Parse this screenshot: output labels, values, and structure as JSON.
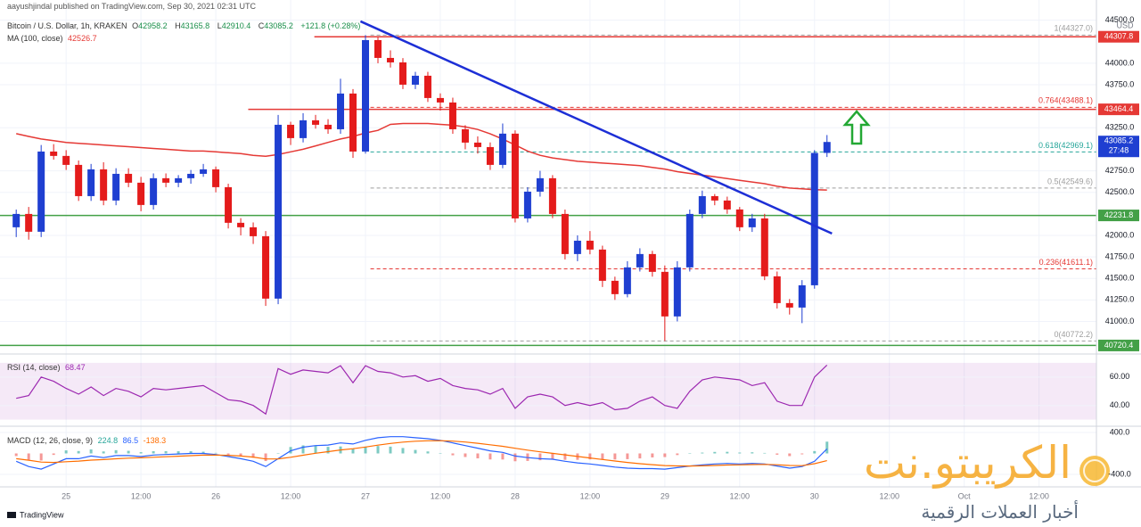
{
  "chart_data": {
    "type": "candlestick",
    "attribution": "aayushjindal published on TradingView.com, Sep 30, 2021 02:31 UTC",
    "title": "Bitcoin / U.S. Dollar, 1h, KRAKEN",
    "ohlc_prefixes": [
      "O",
      "H",
      "L",
      "C"
    ],
    "change": "+121.8 (+0.28%)",
    "countdown": "27:48",
    "axis_unit": "USD",
    "footer": "TradingView",
    "up_color": "#1f3fd1",
    "down_color": "#e41b1b",
    "open": [
      42094,
      42249,
      42042,
      42974,
      42923,
      42819,
      42456,
      42767,
      42405,
      42715,
      42612,
      42353,
      42664,
      42612,
      42664,
      42715,
      42767,
      42560,
      42146,
      42094,
      41990,
      41265,
      43285,
      43130,
      43337,
      43285,
      43233,
      43648,
      42974,
      44269,
      44062,
      44010,
      43751,
      43855,
      43596,
      43544,
      43233,
      43078,
      43026,
      42819,
      43182,
      42197,
      42508,
      42664,
      42249,
      41783,
      41938,
      41835,
      41472,
      41317,
      41628,
      41783,
      41576,
      41058,
      41628,
      42249,
      42456,
      42405,
      42301,
      42094,
      42197,
      41524,
      41213,
      41161,
      41420,
      42958.2
    ],
    "high": [
      42300,
      42330,
      43050,
      43060,
      42990,
      42870,
      42830,
      42850,
      42780,
      42780,
      42680,
      42720,
      42720,
      42700,
      42760,
      42830,
      42800,
      42600,
      42200,
      42150,
      42050,
      43400,
      43320,
      43420,
      43400,
      43350,
      43820,
      43700,
      44327,
      44300,
      44150,
      44060,
      43900,
      43900,
      43650,
      43600,
      43280,
      43150,
      43080,
      43300,
      43220,
      42560,
      42750,
      42700,
      42300,
      42000,
      42050,
      41880,
      41520,
      41700,
      41850,
      41820,
      41650,
      41700,
      42300,
      42520,
      42480,
      42450,
      42330,
      42250,
      42250,
      41580,
      41260,
      41480,
      42990,
      43165.8
    ],
    "low": [
      41980,
      41950,
      41980,
      42880,
      42760,
      42400,
      42400,
      42350,
      42350,
      42560,
      42280,
      42300,
      42560,
      42560,
      42600,
      42680,
      42500,
      42080,
      42000,
      41900,
      41180,
      41200,
      43050,
      43080,
      43240,
      43180,
      43180,
      42900,
      42950,
      44000,
      43950,
      43700,
      43700,
      43550,
      43450,
      43180,
      43000,
      42950,
      42760,
      42780,
      42150,
      42150,
      42450,
      42200,
      41720,
      41700,
      41780,
      41400,
      41250,
      41280,
      41580,
      41520,
      40772.2,
      41000,
      41580,
      42200,
      42350,
      42250,
      42050,
      42040,
      41480,
      41150,
      41080,
      40980,
      41380,
      42910.4
    ],
    "close": [
      42249,
      42042,
      42974,
      42923,
      42819,
      42456,
      42767,
      42405,
      42715,
      42612,
      42353,
      42664,
      42612,
      42664,
      42715,
      42767,
      42560,
      42146,
      42094,
      41990,
      41265,
      43285,
      43130,
      43337,
      43285,
      43233,
      43648,
      42974,
      44269,
      44062,
      44010,
      43751,
      43855,
      43596,
      43544,
      43233,
      43078,
      43026,
      42819,
      43182,
      42197,
      42508,
      42664,
      42249,
      41783,
      41938,
      41835,
      41472,
      41317,
      41628,
      41783,
      41576,
      41058,
      41628,
      42249,
      42456,
      42405,
      42301,
      42094,
      42197,
      41524,
      41213,
      41161,
      41420,
      42958,
      43085.2
    ],
    "ma": {
      "name": "MA (100, close)",
      "color": "#e53935",
      "values": [
        43182,
        43150,
        43120,
        43100,
        43080,
        43070,
        43060,
        43050,
        43040,
        43030,
        43020,
        43010,
        43000,
        42990,
        42980,
        42980,
        42970,
        42960,
        42950,
        42930,
        42920,
        42940,
        42970,
        43000,
        43040,
        43080,
        43120,
        43150,
        43190,
        43220,
        43290,
        43300,
        43300,
        43300,
        43290,
        43280,
        43260,
        43230,
        43180,
        43120,
        43050,
        42980,
        42930,
        42900,
        42880,
        42860,
        42850,
        42840,
        42830,
        42820,
        42810,
        42790,
        42770,
        42740,
        42720,
        42700,
        42680,
        42660,
        42640,
        42620,
        42600,
        42570,
        42550,
        42540,
        42530,
        42526.7
      ]
    },
    "xlim": [
      -1.3,
      86.6
    ],
    "xticks": [
      {
        "value": 4,
        "label": "25"
      },
      {
        "value": 10,
        "label": "12:00"
      },
      {
        "value": 16,
        "label": "26"
      },
      {
        "value": 22,
        "label": "12:00"
      },
      {
        "value": 28,
        "label": "27"
      },
      {
        "value": 34,
        "label": "12:00"
      },
      {
        "value": 40,
        "label": "28"
      },
      {
        "value": 46,
        "label": "12:00"
      },
      {
        "value": 52,
        "label": "29"
      },
      {
        "value": 58,
        "label": "12:00"
      },
      {
        "value": 64,
        "label": "30"
      },
      {
        "value": 70,
        "label": "12:00"
      },
      {
        "value": 76,
        "label": "Oct"
      },
      {
        "value": 82,
        "label": "12:00"
      }
    ],
    "ylim": [
      40642,
      44735
    ],
    "yticks": [
      {
        "value": 44500,
        "label": "44500.0"
      },
      {
        "value": 44000,
        "label": "44000.0"
      },
      {
        "value": 43750,
        "label": "43750.0"
      },
      {
        "value": 43250,
        "label": "43250.0"
      },
      {
        "value": 42750,
        "label": "42750.0"
      },
      {
        "value": 42500,
        "label": "42500.0"
      },
      {
        "value": 42000,
        "label": "42000.0"
      },
      {
        "value": 41750,
        "label": "41750.0"
      },
      {
        "value": 41500,
        "label": "41500.0"
      },
      {
        "value": 41250,
        "label": "41250.0"
      },
      {
        "value": 41000,
        "label": "41000.0"
      }
    ],
    "grid": true,
    "levels": [
      {
        "value": 44307.8,
        "color": "#e53935",
        "start": 23.9
      },
      {
        "value": 43464.4,
        "color": "#e53935",
        "start": 18.6
      },
      {
        "value": 42231.8,
        "color": "#43a047",
        "start": -1.3
      },
      {
        "value": 40720.4,
        "color": "#43a047",
        "start": -1.3
      }
    ],
    "fib_start": 28.4,
    "fib": [
      {
        "value": 44327.0,
        "label": "1(44327.0)",
        "color": "#9e9e9e"
      },
      {
        "value": 43488.1,
        "label": "0.764(43488.1)",
        "color": "#e53935"
      },
      {
        "value": 42969.1,
        "label": "0.618(42969.1)",
        "color": "#26a69a"
      },
      {
        "value": 42549.6,
        "label": "0.5(42549.6)",
        "color": "#9e9e9e"
      },
      {
        "value": 41611.1,
        "label": "0.236(41611.1)",
        "color": "#e53935"
      },
      {
        "value": 40772.2,
        "label": "0(40772.2)",
        "color": "#9e9e9e"
      }
    ],
    "trendline": {
      "x": [
        27.6,
        65.4
      ],
      "y": [
        44487,
        42021
      ],
      "color": "#1d2fd6"
    },
    "rsi": {
      "name": "RSI (14, close)",
      "color": "#9c27b0",
      "ylim": [
        26,
        75.6
      ],
      "band": [
        30,
        70
      ],
      "yticks": [
        {
          "value": 60,
          "label": "60.00"
        },
        {
          "value": 40,
          "label": "40.00"
        }
      ],
      "values": [
        45,
        47,
        60,
        57,
        52,
        48,
        53,
        47,
        52,
        50,
        46,
        52,
        51,
        52,
        53,
        54,
        49,
        44,
        43,
        40,
        34,
        66,
        62,
        65,
        64,
        63,
        68,
        56,
        68,
        64,
        63,
        60,
        61,
        57,
        59,
        54,
        52,
        51,
        48,
        52,
        38,
        46,
        48,
        46,
        40,
        42,
        40,
        42,
        37,
        38,
        43,
        46,
        40,
        38,
        50,
        58,
        60,
        59,
        58,
        54,
        56,
        43,
        40,
        40,
        60,
        68.47
      ]
    },
    "macd": {
      "name": "MACD (12, 26, close, 9)",
      "ylim": [
        -621,
        485
      ],
      "yticks": [
        {
          "value": 400,
          "label": "400.0"
        },
        {
          "value": -400,
          "label": "-400.0"
        }
      ],
      "histogram": {
        "colors": [
          "#26a69a",
          "#ef5350"
        ],
        "values": [
          -50,
          -120,
          -135,
          -28,
          58,
          46,
          77,
          38,
          62,
          50,
          24,
          43,
          43,
          42,
          42,
          33,
          11,
          -24,
          -51,
          -81,
          -145,
          4,
          123,
          154,
          147,
          126,
          133,
          90,
          128,
          142,
          130,
          104,
          67,
          38,
          6,
          -35,
          -68,
          -94,
          -115,
          -116,
          -149,
          -143,
          -130,
          -112,
          -122,
          -122,
          -114,
          -115,
          -116,
          -109,
          -95,
          -76,
          -69,
          -31,
          0,
          16,
          29,
          31,
          17,
          22,
          10,
          -24,
          -51,
          -17,
          45,
          224.8
        ]
      },
      "macd": {
        "color": "#2962ff",
        "values": [
          -150,
          -250,
          -300,
          -200,
          -100,
          -100,
          -50,
          -80,
          -40,
          -40,
          -60,
          -30,
          -20,
          -10,
          0,
          0,
          -20,
          -60,
          -100,
          -150,
          -250,
          -100,
          50,
          120,
          150,
          160,
          200,
          180,
          250,
          300,
          320,
          320,
          300,
          280,
          250,
          200,
          150,
          100,
          50,
          20,
          -50,
          -80,
          -100,
          -110,
          -150,
          -180,
          -200,
          -230,
          -260,
          -280,
          -290,
          -290,
          -300,
          -270,
          -240,
          -220,
          -200,
          -190,
          -200,
          -190,
          -200,
          -240,
          -280,
          -250,
          -150,
          86.5
        ]
      },
      "signal": {
        "color": "#ff6d00",
        "values": [
          -100,
          -130,
          -165,
          -172,
          -158,
          -146,
          -127,
          -118,
          -102,
          -90,
          -84,
          -73,
          -63,
          -52,
          -42,
          -33,
          -31,
          -36,
          -49,
          -69,
          -105,
          -104,
          -73,
          -34,
          3,
          34,
          67,
          90,
          122,
          158,
          190,
          216,
          233,
          242,
          244,
          235,
          218,
          194,
          165,
          136,
          99,
          63,
          30,
          2,
          -28,
          -58,
          -86,
          -115,
          -144,
          -171,
          -195,
          -214,
          -231,
          -239,
          -240,
          -236,
          -229,
          -221,
          -217,
          -212,
          -210,
          -216,
          -229,
          -233,
          -195,
          -138.3
        ]
      }
    },
    "watermark": {
      "brand": "الكريبتو.نت",
      "tagline": "أخبار العملات الرقمية"
    }
  }
}
